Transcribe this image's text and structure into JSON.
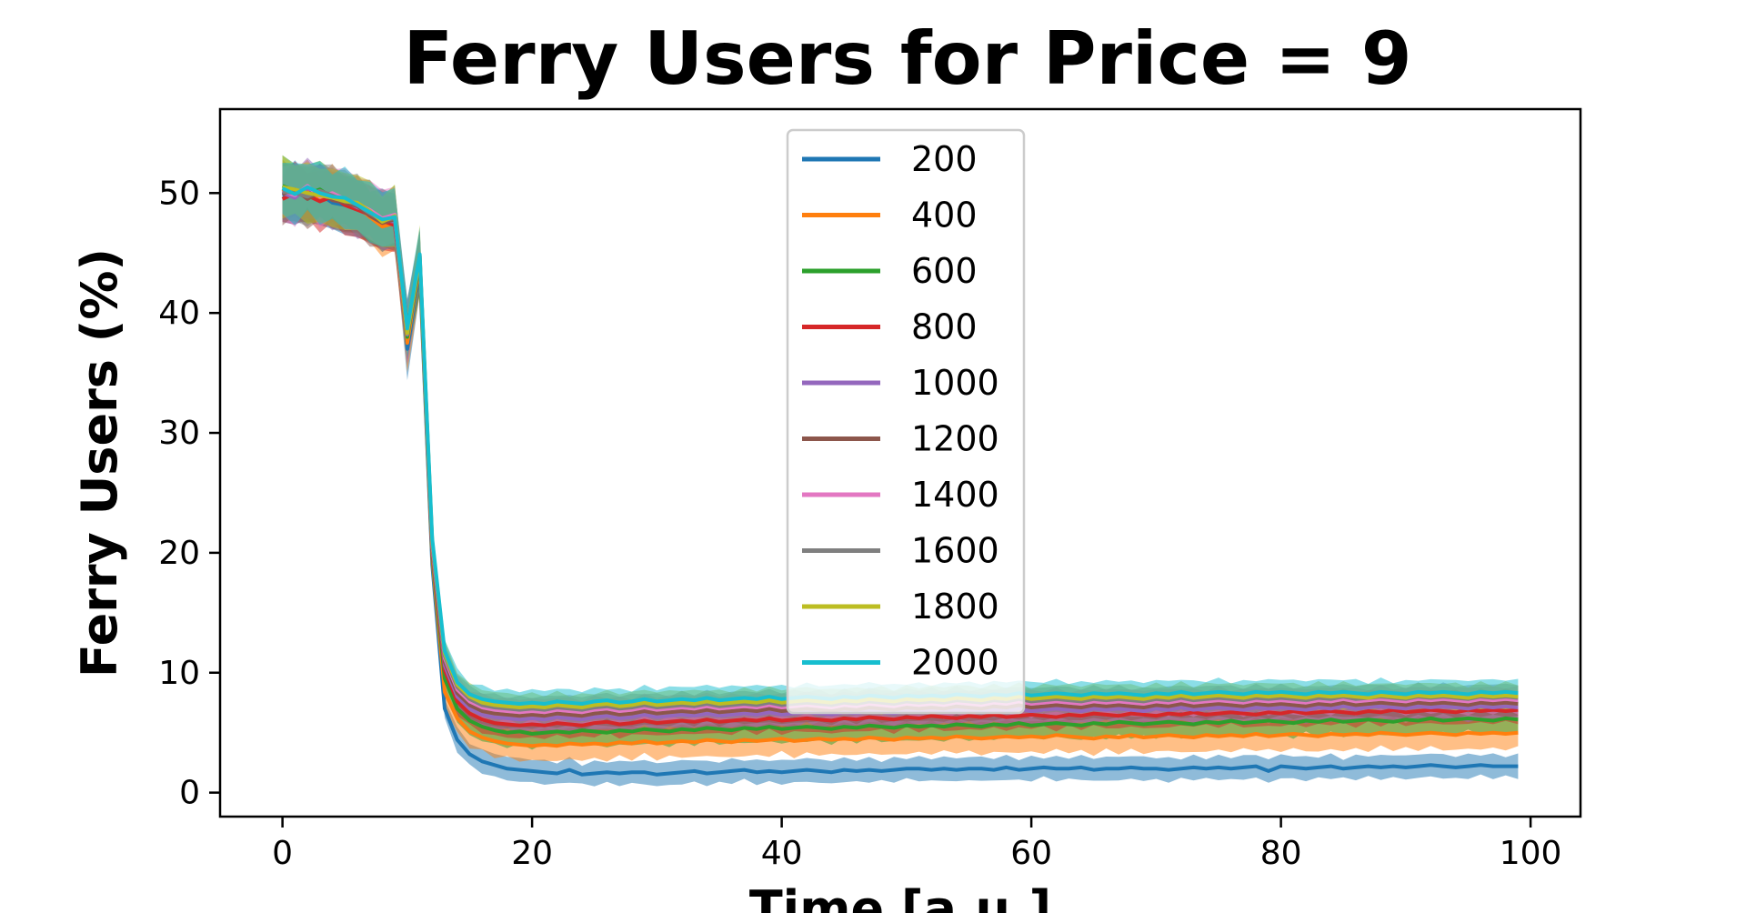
{
  "chart_data": {
    "type": "line",
    "title": "Ferry Users for Price = 9",
    "xlabel": "Time [a.u.]",
    "ylabel": "Ferry Users (%)",
    "xlim": [
      -5,
      104
    ],
    "ylim": [
      -2,
      57
    ],
    "xticks": [
      0,
      20,
      40,
      60,
      80,
      100
    ],
    "yticks": [
      0,
      10,
      20,
      30,
      40,
      50
    ],
    "grid": false,
    "legend_position": "top-center",
    "band": "shaded spread around each line",
    "x": [
      0,
      1,
      2,
      3,
      4,
      5,
      6,
      7,
      8,
      9,
      10,
      11,
      12,
      13,
      14,
      15,
      16,
      17,
      18,
      19,
      20,
      21,
      22,
      23,
      24,
      25,
      26,
      27,
      28,
      29,
      30,
      31,
      32,
      33,
      34,
      35,
      36,
      37,
      38,
      39,
      40,
      41,
      42,
      43,
      44,
      45,
      46,
      47,
      48,
      49,
      50,
      51,
      52,
      53,
      54,
      55,
      56,
      57,
      58,
      59,
      60,
      61,
      62,
      63,
      64,
      65,
      66,
      67,
      68,
      69,
      70,
      71,
      72,
      73,
      74,
      75,
      76,
      77,
      78,
      79,
      80,
      81,
      82,
      83,
      84,
      85,
      86,
      87,
      88,
      89,
      90,
      91,
      92,
      93,
      94,
      95,
      96,
      97,
      98,
      99
    ],
    "series": [
      {
        "name": "200",
        "color": "#1f77b4",
        "band": 0.9,
        "values": [
          49.8,
          50.1,
          49.6,
          49.9,
          49.2,
          49.0,
          48.7,
          48.3,
          47.6,
          47.9,
          37.0,
          43.5,
          19.0,
          7.0,
          4.4,
          3.2,
          2.6,
          2.3,
          2.0,
          1.9,
          1.8,
          1.7,
          1.6,
          1.9,
          1.5,
          1.6,
          1.7,
          1.6,
          1.7,
          1.7,
          1.5,
          1.6,
          1.7,
          1.8,
          1.6,
          1.7,
          1.8,
          1.9,
          1.7,
          1.8,
          1.7,
          1.8,
          1.9,
          1.8,
          1.7,
          1.9,
          1.8,
          1.9,
          1.8,
          1.9,
          2.0,
          2.0,
          1.9,
          2.0,
          1.9,
          2.0,
          2.0,
          1.9,
          2.1,
          1.9,
          2.0,
          2.1,
          2.0,
          2.0,
          2.1,
          1.9,
          2.0,
          2.0,
          2.1,
          2.0,
          2.0,
          1.9,
          2.0,
          2.1,
          2.0,
          2.1,
          2.0,
          2.1,
          2.2,
          1.8,
          2.2,
          2.1,
          2.0,
          2.1,
          2.2,
          2.0,
          2.1,
          2.2,
          2.1,
          2.2,
          2.1,
          2.2,
          2.3,
          2.2,
          2.1,
          2.2,
          2.3,
          2.2,
          2.2,
          2.2
        ]
      },
      {
        "name": "400",
        "color": "#ff7f0e",
        "band": 1.2,
        "values": [
          50.3,
          49.7,
          50.2,
          49.5,
          49.8,
          49.1,
          48.9,
          48.0,
          47.2,
          47.5,
          37.5,
          44.0,
          19.6,
          8.4,
          6.2,
          5.1,
          4.6,
          4.3,
          4.1,
          4.0,
          3.9,
          4.0,
          3.9,
          4.1,
          4.0,
          4.1,
          4.0,
          4.2,
          4.1,
          4.3,
          4.1,
          4.2,
          4.3,
          4.2,
          4.4,
          4.3,
          4.2,
          4.4,
          4.3,
          4.4,
          4.5,
          4.3,
          4.4,
          4.5,
          4.4,
          4.5,
          4.4,
          4.6,
          4.5,
          4.4,
          4.6,
          4.5,
          4.6,
          4.5,
          4.7,
          4.6,
          4.5,
          4.6,
          4.7,
          4.6,
          4.7,
          4.6,
          4.8,
          4.7,
          4.6,
          4.5,
          4.7,
          4.6,
          4.8,
          4.6,
          4.7,
          4.8,
          4.7,
          4.6,
          4.8,
          4.7,
          4.8,
          4.7,
          4.9,
          4.7,
          4.8,
          4.9,
          4.8,
          4.7,
          4.9,
          4.8,
          4.9,
          4.8,
          5.0,
          4.9,
          4.8,
          4.9,
          5.0,
          4.9,
          4.8,
          5.0,
          4.9,
          5.0,
          4.9,
          5.0
        ]
      },
      {
        "name": "600",
        "color": "#2ca02c",
        "band": 1.1,
        "values": [
          50.6,
          50.2,
          49.9,
          50.3,
          49.6,
          49.4,
          49.0,
          48.5,
          47.9,
          48.0,
          38.0,
          44.2,
          19.9,
          9.5,
          7.0,
          6.0,
          5.5,
          5.2,
          5.0,
          5.1,
          4.9,
          5.0,
          5.1,
          5.0,
          5.2,
          5.1,
          5.0,
          5.2,
          5.1,
          5.3,
          5.2,
          5.1,
          5.3,
          5.2,
          5.4,
          5.3,
          5.2,
          5.4,
          5.3,
          5.5,
          5.3,
          5.4,
          5.5,
          5.4,
          5.3,
          5.5,
          5.4,
          5.6,
          5.5,
          5.4,
          5.6,
          5.5,
          5.6,
          5.5,
          5.7,
          5.6,
          5.5,
          5.7,
          5.6,
          5.8,
          5.6,
          5.7,
          5.8,
          5.7,
          5.6,
          5.8,
          5.7,
          5.9,
          5.8,
          5.7,
          5.8,
          5.9,
          5.8,
          5.7,
          5.9,
          5.8,
          6.0,
          5.8,
          5.9,
          6.0,
          5.9,
          5.8,
          6.0,
          5.9,
          6.1,
          5.9,
          6.0,
          6.1,
          6.0,
          5.9,
          6.1,
          6.0,
          6.2,
          6.0,
          6.1,
          6.2,
          6.1,
          6.0,
          6.2,
          6.1
        ]
      },
      {
        "name": "800",
        "color": "#d62728",
        "band": 1.0,
        "values": [
          49.5,
          50.0,
          49.8,
          49.3,
          49.7,
          49.0,
          48.6,
          48.2,
          47.7,
          47.3,
          38.5,
          44.8,
          20.1,
          10.2,
          7.6,
          6.6,
          6.1,
          5.8,
          5.7,
          5.6,
          5.7,
          5.6,
          5.8,
          5.7,
          5.6,
          5.8,
          5.9,
          5.7,
          5.8,
          6.0,
          5.8,
          5.9,
          6.0,
          5.9,
          6.1,
          5.9,
          6.0,
          6.1,
          6.0,
          6.2,
          6.0,
          6.1,
          6.2,
          6.1,
          6.0,
          6.2,
          6.1,
          6.3,
          6.2,
          6.1,
          6.3,
          6.2,
          6.4,
          6.3,
          6.2,
          6.4,
          6.3,
          6.5,
          6.3,
          6.4,
          6.5,
          6.4,
          6.3,
          6.5,
          6.4,
          6.6,
          6.5,
          6.4,
          6.6,
          6.5,
          6.4,
          6.6,
          6.5,
          6.7,
          6.5,
          6.6,
          6.7,
          6.6,
          6.5,
          6.7,
          6.6,
          6.8,
          6.6,
          6.7,
          6.8,
          6.7,
          6.6,
          6.8,
          6.7,
          6.9,
          6.7,
          6.8,
          6.9,
          6.8,
          6.7,
          6.9,
          6.8,
          6.9,
          6.8,
          6.9
        ]
      },
      {
        "name": "1000",
        "color": "#9467bd",
        "band": 1.0,
        "values": [
          50.0,
          49.6,
          50.4,
          49.9,
          49.5,
          49.3,
          48.8,
          48.4,
          47.8,
          47.6,
          38.2,
          44.5,
          20.3,
          10.6,
          8.0,
          7.0,
          6.5,
          6.3,
          6.2,
          6.1,
          6.2,
          6.1,
          6.3,
          6.2,
          6.1,
          6.3,
          6.4,
          6.2,
          6.3,
          6.5,
          6.3,
          6.4,
          6.5,
          6.4,
          6.6,
          6.4,
          6.5,
          6.6,
          6.5,
          6.7,
          6.5,
          6.6,
          6.7,
          6.6,
          6.5,
          6.7,
          6.6,
          6.8,
          6.7,
          6.6,
          6.8,
          6.7,
          6.8,
          6.7,
          6.9,
          6.8,
          6.7,
          6.9,
          6.8,
          7.0,
          6.8,
          6.9,
          7.0,
          6.9,
          6.8,
          7.0,
          6.9,
          7.0,
          6.9,
          6.8,
          7.0,
          6.9,
          7.1,
          6.9,
          7.0,
          7.1,
          7.0,
          6.9,
          7.1,
          7.0,
          7.1,
          7.0,
          6.9,
          7.1,
          7.0,
          7.2,
          7.0,
          7.1,
          7.2,
          7.1,
          7.0,
          7.2,
          7.1,
          7.2,
          7.1,
          7.0,
          7.2,
          7.1,
          7.2,
          7.1
        ]
      },
      {
        "name": "1200",
        "color": "#8c564b",
        "band": 1.0,
        "values": [
          49.9,
          50.3,
          49.5,
          50.1,
          49.4,
          49.2,
          48.9,
          48.1,
          47.5,
          47.8,
          38.8,
          44.3,
          20.5,
          10.9,
          8.3,
          7.3,
          6.8,
          6.6,
          6.5,
          6.4,
          6.5,
          6.4,
          6.6,
          6.5,
          6.4,
          6.6,
          6.7,
          6.5,
          6.6,
          6.8,
          6.6,
          6.7,
          6.8,
          6.7,
          6.9,
          6.7,
          6.8,
          6.9,
          6.8,
          7.0,
          6.8,
          6.9,
          7.0,
          6.9,
          6.8,
          7.0,
          6.9,
          7.1,
          7.0,
          6.9,
          7.1,
          7.0,
          7.1,
          7.0,
          7.2,
          7.1,
          7.0,
          7.2,
          7.1,
          7.3,
          7.1,
          7.2,
          7.3,
          7.2,
          7.1,
          7.3,
          7.2,
          7.3,
          7.2,
          7.1,
          7.3,
          7.2,
          7.4,
          7.2,
          7.3,
          7.4,
          7.3,
          7.2,
          7.4,
          7.3,
          7.4,
          7.3,
          7.2,
          7.4,
          7.3,
          7.5,
          7.3,
          7.4,
          7.5,
          7.4,
          7.3,
          7.5,
          7.4,
          7.5,
          7.4,
          7.3,
          7.5,
          7.4,
          7.5,
          7.4
        ]
      },
      {
        "name": "1400",
        "color": "#e377c2",
        "band": 1.0,
        "values": [
          50.2,
          49.8,
          50.6,
          49.7,
          50.0,
          49.5,
          49.1,
          48.6,
          47.9,
          48.2,
          38.4,
          44.6,
          20.7,
          11.2,
          8.6,
          7.6,
          7.1,
          6.9,
          6.8,
          6.7,
          6.8,
          6.7,
          6.9,
          6.8,
          6.7,
          6.9,
          7.0,
          6.8,
          6.9,
          7.1,
          6.9,
          7.0,
          7.1,
          7.0,
          7.2,
          7.0,
          7.1,
          7.2,
          7.1,
          7.3,
          7.1,
          7.2,
          7.3,
          7.2,
          7.1,
          7.3,
          7.2,
          7.4,
          7.3,
          7.2,
          7.4,
          7.3,
          7.4,
          7.3,
          7.5,
          7.4,
          7.3,
          7.5,
          7.4,
          7.6,
          7.4,
          7.5,
          7.6,
          7.5,
          7.4,
          7.6,
          7.5,
          7.6,
          7.5,
          7.4,
          7.6,
          7.5,
          7.7,
          7.5,
          7.6,
          7.7,
          7.6,
          7.5,
          7.7,
          7.6,
          7.7,
          7.6,
          7.5,
          7.7,
          7.6,
          7.8,
          7.6,
          7.7,
          7.8,
          7.7,
          7.6,
          7.8,
          7.7,
          7.8,
          7.7,
          7.6,
          7.8,
          7.7,
          7.8,
          7.7
        ]
      },
      {
        "name": "1600",
        "color": "#7f7f7f",
        "band": 1.0,
        "values": [
          50.1,
          50.0,
          49.7,
          50.2,
          49.8,
          49.4,
          49.0,
          48.3,
          47.7,
          47.9,
          38.6,
          44.4,
          20.9,
          11.4,
          8.8,
          7.8,
          7.3,
          7.1,
          7.0,
          6.9,
          7.0,
          6.9,
          7.1,
          7.0,
          6.9,
          7.1,
          7.2,
          7.0,
          7.1,
          7.3,
          7.1,
          7.2,
          7.3,
          7.2,
          7.4,
          7.2,
          7.3,
          7.4,
          7.3,
          7.5,
          7.3,
          7.4,
          7.5,
          7.4,
          7.3,
          7.5,
          7.4,
          7.6,
          7.5,
          7.4,
          7.6,
          7.5,
          7.6,
          7.5,
          7.7,
          7.6,
          7.5,
          7.7,
          7.6,
          7.8,
          7.6,
          7.7,
          7.8,
          7.7,
          7.6,
          7.8,
          7.7,
          7.8,
          7.7,
          7.6,
          7.8,
          7.7,
          7.9,
          7.7,
          7.8,
          7.9,
          7.8,
          7.7,
          7.9,
          7.8,
          7.9,
          7.8,
          7.7,
          7.9,
          7.8,
          8.0,
          7.8,
          7.9,
          8.0,
          7.9,
          7.8,
          8.0,
          7.9,
          8.0,
          7.9,
          7.8,
          8.0,
          7.9,
          8.0,
          7.9
        ]
      },
      {
        "name": "1800",
        "color": "#bcbd22",
        "band": 1.0,
        "values": [
          50.5,
          50.3,
          50.0,
          49.8,
          49.6,
          49.3,
          49.2,
          48.5,
          47.6,
          48.1,
          38.3,
          44.7,
          21.0,
          11.6,
          9.0,
          8.0,
          7.5,
          7.3,
          7.2,
          7.1,
          7.2,
          7.1,
          7.3,
          7.2,
          7.1,
          7.3,
          7.4,
          7.2,
          7.3,
          7.5,
          7.3,
          7.4,
          7.5,
          7.4,
          7.6,
          7.4,
          7.5,
          7.6,
          7.5,
          7.7,
          7.5,
          7.6,
          7.7,
          7.6,
          7.5,
          7.7,
          7.6,
          7.8,
          7.7,
          7.6,
          7.8,
          7.7,
          7.8,
          7.7,
          7.9,
          7.8,
          7.7,
          7.9,
          7.8,
          8.0,
          7.8,
          7.9,
          8.0,
          7.9,
          7.8,
          8.0,
          7.9,
          8.0,
          7.9,
          7.8,
          8.0,
          7.9,
          8.1,
          7.9,
          8.0,
          8.1,
          8.0,
          7.9,
          8.1,
          8.0,
          8.1,
          8.0,
          7.9,
          8.1,
          8.0,
          8.1,
          8.0,
          7.9,
          8.1,
          8.0,
          7.9,
          8.1,
          8.0,
          8.1,
          8.0,
          7.9,
          8.1,
          8.0,
          8.1,
          8.0
        ]
      },
      {
        "name": "2000",
        "color": "#17becf",
        "band": 1.0,
        "values": [
          50.4,
          49.9,
          50.5,
          50.0,
          49.7,
          49.6,
          49.0,
          48.4,
          47.8,
          48.0,
          38.7,
          44.9,
          21.2,
          11.8,
          9.2,
          8.2,
          7.8,
          7.6,
          7.5,
          7.4,
          7.5,
          7.4,
          7.6,
          7.5,
          7.4,
          7.6,
          7.7,
          7.5,
          7.6,
          7.8,
          7.6,
          7.7,
          7.8,
          7.7,
          7.9,
          7.7,
          7.8,
          7.9,
          7.8,
          8.0,
          7.8,
          7.9,
          8.0,
          7.9,
          7.8,
          8.0,
          7.9,
          8.1,
          8.0,
          7.9,
          8.1,
          8.0,
          8.1,
          8.0,
          8.2,
          8.1,
          8.0,
          8.2,
          8.1,
          8.3,
          8.1,
          8.2,
          8.3,
          8.2,
          8.1,
          8.3,
          8.2,
          8.3,
          8.2,
          8.1,
          8.3,
          8.2,
          8.4,
          8.2,
          8.3,
          8.4,
          8.3,
          8.2,
          8.4,
          8.3,
          8.4,
          8.3,
          8.2,
          8.4,
          8.3,
          8.4,
          8.3,
          8.2,
          8.4,
          8.3,
          8.2,
          8.4,
          8.3,
          8.4,
          8.3,
          8.2,
          8.4,
          8.3,
          8.4,
          8.3
        ]
      }
    ]
  }
}
